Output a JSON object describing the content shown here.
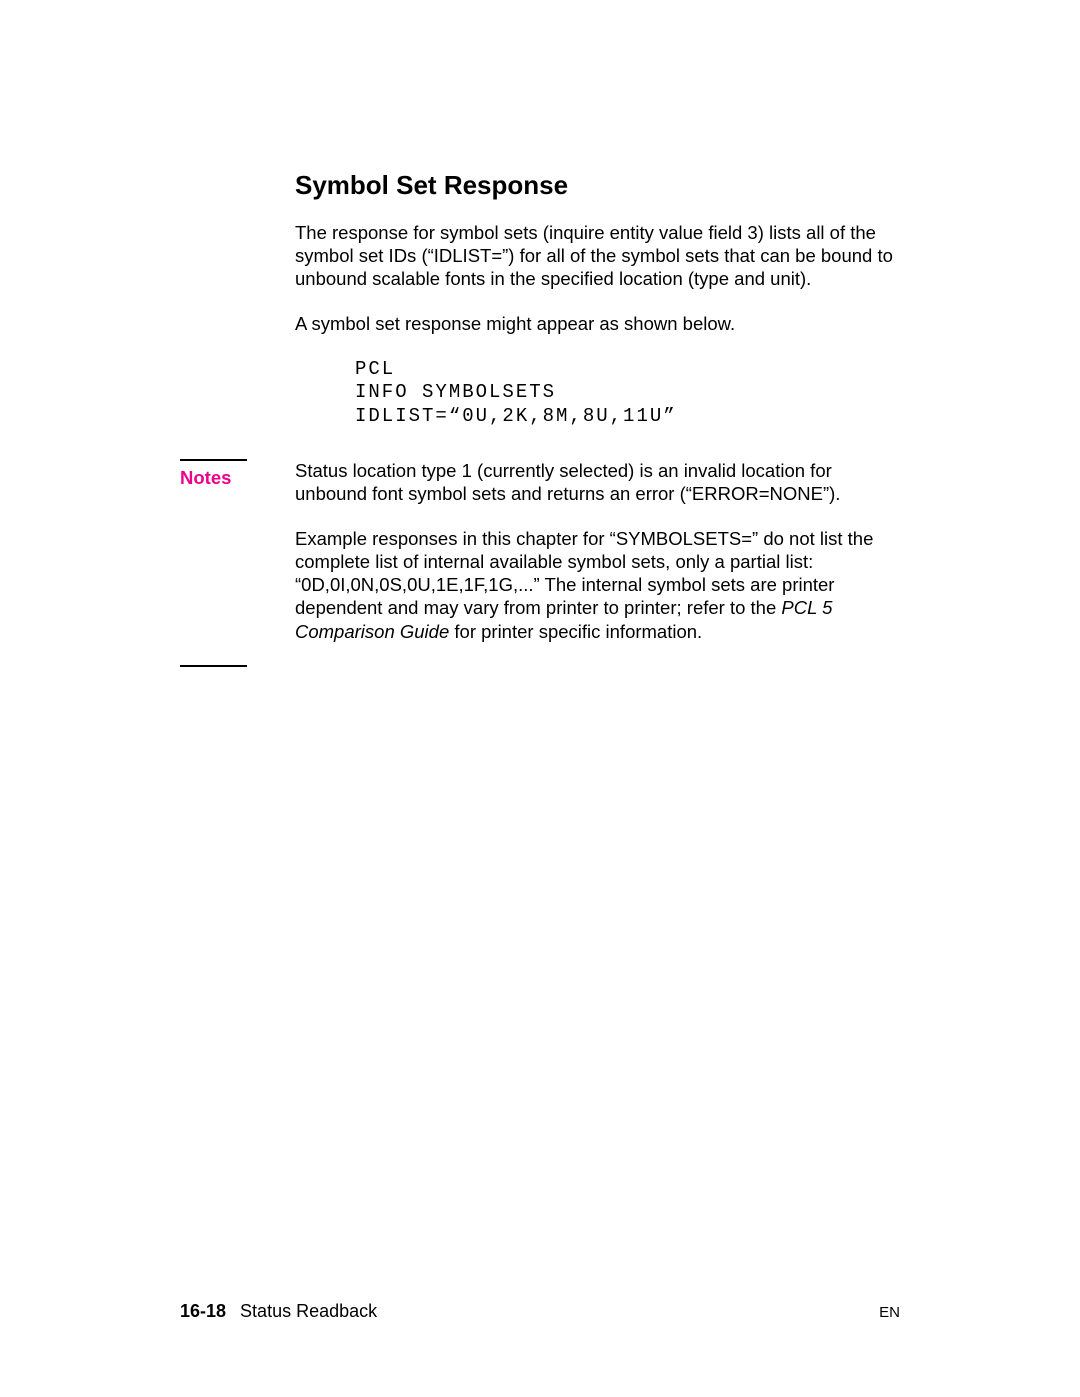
{
  "heading": "Symbol Set Response",
  "para1": "The response for symbol sets (inquire entity value field 3) lists all of the symbol set IDs (“IDLIST=”) for all of the symbol sets that can be bound to unbound scalable fonts in the specified location (type and unit).",
  "para2": "A symbol set response might appear as shown below.",
  "code": "PCL\nINFO SYMBOLSETS\nIDLIST=“0U,2K,8M,8U,11U”",
  "notes": {
    "label": "Notes",
    "para1": "Status location type 1 (currently selected) is an invalid location for unbound font symbol sets and returns an error (“ERROR=NONE”).",
    "para2_pre": "Example responses in this chapter for “SYMBOLSETS=” do not list the complete list of internal available symbol sets, only a partial list: “0D,0I,0N,0S,0U,1E,1F,1G,...” The internal symbol sets are printer dependent and may vary from printer to printer; refer to the ",
    "para2_italic": "PCL 5 Comparison Guide",
    "para2_post": " for printer specific information."
  },
  "footer": {
    "page": "16-18",
    "title": "Status Readback",
    "lang": "EN"
  },
  "colors": {
    "notes_label": "#ec008c",
    "text": "#000000",
    "background": "#ffffff"
  }
}
